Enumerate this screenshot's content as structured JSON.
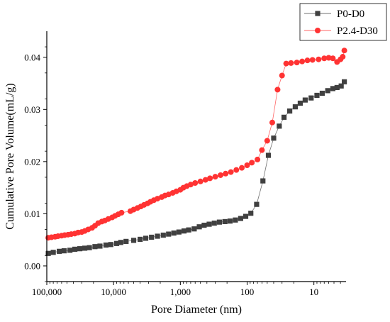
{
  "chart_data": {
    "type": "line",
    "title": "",
    "xlabel": "Pore Diameter (nm)",
    "ylabel": "Cumulative Pore Volume(mL/g)",
    "x_scale": "log",
    "x_reversed": true,
    "xlim": [
      100000,
      3.3
    ],
    "ylim": [
      -0.003,
      0.045
    ],
    "x_ticks": [
      {
        "value": 100000,
        "label": "100,000"
      },
      {
        "value": 10000,
        "label": "10,000"
      },
      {
        "value": 1000,
        "label": "1,000"
      },
      {
        "value": 100,
        "label": "100"
      },
      {
        "value": 10,
        "label": "10"
      }
    ],
    "y_ticks": [
      {
        "value": 0,
        "label": "0.00"
      },
      {
        "value": 0.01,
        "label": "0.01"
      },
      {
        "value": 0.02,
        "label": "0.02"
      },
      {
        "value": 0.03,
        "label": "0.03"
      },
      {
        "value": 0.04,
        "label": "0.04"
      }
    ],
    "grid": false,
    "legend_position": "top-right",
    "series": [
      {
        "name": "P0-D0",
        "color": "#404040",
        "marker": "square",
        "points": [
          [
            95000,
            0.0024
          ],
          [
            80000,
            0.0026
          ],
          [
            65000,
            0.0028
          ],
          [
            55000,
            0.0029
          ],
          [
            45000,
            0.003
          ],
          [
            38000,
            0.0032
          ],
          [
            32000,
            0.0033
          ],
          [
            27000,
            0.0034
          ],
          [
            23000,
            0.0035
          ],
          [
            19000,
            0.0037
          ],
          [
            16000,
            0.0038
          ],
          [
            13000,
            0.004
          ],
          [
            11000,
            0.0041
          ],
          [
            9000,
            0.0043
          ],
          [
            7800,
            0.0045
          ],
          [
            6500,
            0.0047
          ],
          [
            5000,
            0.0049
          ],
          [
            4000,
            0.0051
          ],
          [
            3300,
            0.0053
          ],
          [
            2700,
            0.0055
          ],
          [
            2200,
            0.0057
          ],
          [
            1800,
            0.0059
          ],
          [
            1500,
            0.0061
          ],
          [
            1250,
            0.0063
          ],
          [
            1050,
            0.0065
          ],
          [
            880,
            0.0067
          ],
          [
            750,
            0.0069
          ],
          [
            620,
            0.0071
          ],
          [
            520,
            0.0075
          ],
          [
            440,
            0.0078
          ],
          [
            370,
            0.008
          ],
          [
            310,
            0.0082
          ],
          [
            260,
            0.0084
          ],
          [
            215,
            0.0085
          ],
          [
            180,
            0.0086
          ],
          [
            150,
            0.0088
          ],
          [
            125,
            0.0091
          ],
          [
            105,
            0.0095
          ],
          [
            88,
            0.0101
          ],
          [
            72,
            0.0118
          ],
          [
            58,
            0.0163
          ],
          [
            48,
            0.0212
          ],
          [
            40,
            0.0245
          ],
          [
            33,
            0.0268
          ],
          [
            28,
            0.0285
          ],
          [
            23,
            0.0297
          ],
          [
            19,
            0.0305
          ],
          [
            16,
            0.0312
          ],
          [
            13.5,
            0.0318
          ],
          [
            11,
            0.0322
          ],
          [
            9,
            0.0327
          ],
          [
            7.5,
            0.0331
          ],
          [
            6.2,
            0.0336
          ],
          [
            5.2,
            0.034
          ],
          [
            4.5,
            0.0342
          ],
          [
            3.9,
            0.0345
          ],
          [
            3.5,
            0.0353
          ]
        ]
      },
      {
        "name": "P2.4-D30",
        "color": "#ff3333",
        "marker": "circle",
        "points": [
          [
            95000,
            0.0054
          ],
          [
            85000,
            0.0055
          ],
          [
            75000,
            0.0056
          ],
          [
            68000,
            0.0057
          ],
          [
            60000,
            0.0058
          ],
          [
            54000,
            0.0059
          ],
          [
            48000,
            0.006
          ],
          [
            43000,
            0.0061
          ],
          [
            38000,
            0.0062
          ],
          [
            34000,
            0.0064
          ],
          [
            30000,
            0.0065
          ],
          [
            27000,
            0.0067
          ],
          [
            24000,
            0.007
          ],
          [
            21000,
            0.0073
          ],
          [
            19000,
            0.0077
          ],
          [
            17000,
            0.0082
          ],
          [
            15000,
            0.0085
          ],
          [
            13500,
            0.0087
          ],
          [
            12000,
            0.009
          ],
          [
            10500,
            0.0093
          ],
          [
            9500,
            0.0096
          ],
          [
            8500,
            0.0099
          ],
          [
            7600,
            0.0102
          ],
          [
            5600,
            0.0105
          ],
          [
            5000,
            0.0108
          ],
          [
            4400,
            0.0111
          ],
          [
            3900,
            0.0114
          ],
          [
            3500,
            0.0117
          ],
          [
            3100,
            0.012
          ],
          [
            2800,
            0.0123
          ],
          [
            2500,
            0.0126
          ],
          [
            2200,
            0.0129
          ],
          [
            1900,
            0.0132
          ],
          [
            1700,
            0.0135
          ],
          [
            1500,
            0.0137
          ],
          [
            1300,
            0.014
          ],
          [
            1150,
            0.0143
          ],
          [
            1000,
            0.0146
          ],
          [
            900,
            0.015
          ],
          [
            800,
            0.0153
          ],
          [
            700,
            0.0156
          ],
          [
            600,
            0.0159
          ],
          [
            500,
            0.0162
          ],
          [
            420,
            0.0165
          ],
          [
            360,
            0.0168
          ],
          [
            300,
            0.0171
          ],
          [
            250,
            0.0174
          ],
          [
            210,
            0.0177
          ],
          [
            175,
            0.018
          ],
          [
            145,
            0.0184
          ],
          [
            120,
            0.0188
          ],
          [
            100,
            0.0193
          ],
          [
            85,
            0.0198
          ],
          [
            70,
            0.0204
          ],
          [
            60,
            0.0222
          ],
          [
            50,
            0.024
          ],
          [
            42,
            0.0275
          ],
          [
            35,
            0.0338
          ],
          [
            30,
            0.0365
          ],
          [
            26,
            0.0388
          ],
          [
            22,
            0.0389
          ],
          [
            18,
            0.039
          ],
          [
            15,
            0.0392
          ],
          [
            12.5,
            0.0394
          ],
          [
            10.5,
            0.0395
          ],
          [
            8.5,
            0.0396
          ],
          [
            7,
            0.0398
          ],
          [
            6,
            0.0399
          ],
          [
            5.2,
            0.0398
          ],
          [
            4.5,
            0.0391
          ],
          [
            4,
            0.0396
          ],
          [
            3.7,
            0.0401
          ],
          [
            3.5,
            0.0413
          ]
        ]
      }
    ]
  }
}
